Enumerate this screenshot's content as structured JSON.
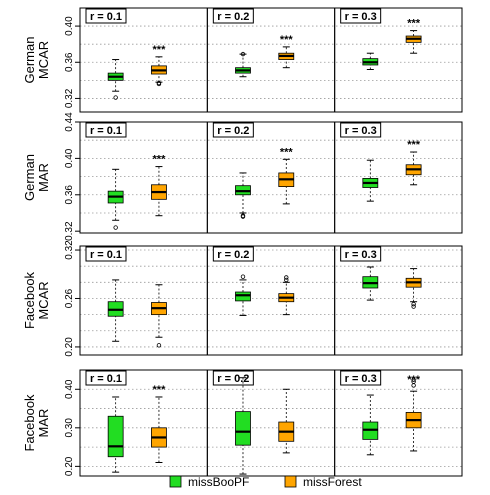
{
  "chart_data": {
    "type": "boxplot",
    "series": [
      {
        "name": "missBooPF",
        "color": "#22dd22"
      },
      {
        "name": "missForest",
        "color": "#ffa500"
      }
    ],
    "panel_labels": [
      "r = 0.1",
      "r = 0.2",
      "r = 0.3"
    ],
    "significance_marker": "***",
    "grid": "dotted horizontal",
    "legend_position": "bottom",
    "rows": [
      {
        "label_lines": [
          "German",
          "MCAR"
        ],
        "ylim": [
          0.305,
          0.42
        ],
        "yticks": [
          0.32,
          0.36,
          0.4
        ],
        "ytick_labels": [
          "0.32",
          "0.36",
          "0.40"
        ],
        "grid_values": [
          0.32,
          0.34,
          0.36,
          0.38,
          0.4
        ],
        "panels": [
          {
            "label": "r = 0.1",
            "sig": true,
            "boxes": [
              {
                "whisker_low": 0.328,
                "q1": 0.34,
                "median": 0.344,
                "q3": 0.348,
                "whisker_high": 0.363,
                "outliers": [
                  0.321
                ]
              },
              {
                "whisker_low": 0.338,
                "q1": 0.347,
                "median": 0.351,
                "q3": 0.356,
                "whisker_high": 0.366,
                "outliers": [
                  0.336,
                  0.337
                ]
              }
            ]
          },
          {
            "label": "r = 0.2",
            "sig": true,
            "boxes": [
              {
                "whisker_low": 0.344,
                "q1": 0.348,
                "median": 0.351,
                "q3": 0.354,
                "whisker_high": 0.369,
                "outliers": [
                  0.369
                ]
              },
              {
                "whisker_low": 0.354,
                "q1": 0.363,
                "median": 0.367,
                "q3": 0.37,
                "whisker_high": 0.377,
                "outliers": []
              }
            ]
          },
          {
            "label": "r = 0.3",
            "sig": true,
            "boxes": [
              {
                "whisker_low": 0.352,
                "q1": 0.357,
                "median": 0.36,
                "q3": 0.364,
                "whisker_high": 0.37,
                "outliers": []
              },
              {
                "whisker_low": 0.37,
                "q1": 0.382,
                "median": 0.386,
                "q3": 0.389,
                "whisker_high": 0.395,
                "outliers": []
              }
            ]
          }
        ]
      },
      {
        "label_lines": [
          "German",
          "MAR"
        ],
        "ylim": [
          0.318,
          0.44
        ],
        "yticks": [
          0.32,
          0.36,
          0.4,
          0.44
        ],
        "ytick_labels": [
          "0.32",
          "0.36",
          "0.40",
          "0.44"
        ],
        "grid_values": [
          0.32,
          0.34,
          0.36,
          0.38,
          0.4,
          0.42
        ],
        "panels": [
          {
            "label": "r = 0.1",
            "sig": true,
            "boxes": [
              {
                "whisker_low": 0.332,
                "q1": 0.351,
                "median": 0.358,
                "q3": 0.364,
                "whisker_high": 0.388,
                "outliers": [
                  0.324
                ]
              },
              {
                "whisker_low": 0.337,
                "q1": 0.355,
                "median": 0.363,
                "q3": 0.371,
                "whisker_high": 0.391,
                "outliers": []
              }
            ]
          },
          {
            "label": "r = 0.2",
            "sig": true,
            "boxes": [
              {
                "whisker_low": 0.34,
                "q1": 0.36,
                "median": 0.364,
                "q3": 0.37,
                "whisker_high": 0.384,
                "outliers": [
                  0.337,
                  0.336
                ]
              },
              {
                "whisker_low": 0.35,
                "q1": 0.369,
                "median": 0.377,
                "q3": 0.384,
                "whisker_high": 0.399,
                "outliers": []
              }
            ]
          },
          {
            "label": "r = 0.3",
            "sig": true,
            "boxes": [
              {
                "whisker_low": 0.353,
                "q1": 0.368,
                "median": 0.373,
                "q3": 0.378,
                "whisker_high": 0.398,
                "outliers": []
              },
              {
                "whisker_low": 0.371,
                "q1": 0.382,
                "median": 0.388,
                "q3": 0.393,
                "whisker_high": 0.407,
                "outliers": []
              }
            ]
          }
        ]
      },
      {
        "label_lines": [
          "Facebook",
          "MCAR"
        ],
        "ylim": [
          0.19,
          0.325
        ],
        "yticks": [
          0.2,
          0.26,
          0.32
        ],
        "ytick_labels": [
          "0.20",
          "0.26",
          "0.32"
        ],
        "grid_values": [
          0.2,
          0.22,
          0.24,
          0.26,
          0.28,
          0.3,
          0.32
        ],
        "panels": [
          {
            "label": "r = 0.1",
            "sig": false,
            "boxes": [
              {
                "whisker_low": 0.207,
                "q1": 0.238,
                "median": 0.246,
                "q3": 0.256,
                "whisker_high": 0.283,
                "outliers": []
              },
              {
                "whisker_low": 0.212,
                "q1": 0.24,
                "median": 0.248,
                "q3": 0.255,
                "whisker_high": 0.277,
                "outliers": [
                  0.202
                ]
              }
            ]
          },
          {
            "label": "r = 0.2",
            "sig": false,
            "boxes": [
              {
                "whisker_low": 0.239,
                "q1": 0.257,
                "median": 0.264,
                "q3": 0.268,
                "whisker_high": 0.283,
                "outliers": [
                  0.287
                ]
              },
              {
                "whisker_low": 0.24,
                "q1": 0.256,
                "median": 0.261,
                "q3": 0.266,
                "whisker_high": 0.28,
                "outliers": [
                  0.283,
                  0.286
                ]
              }
            ]
          },
          {
            "label": "r = 0.3",
            "sig": false,
            "boxes": [
              {
                "whisker_low": 0.258,
                "q1": 0.273,
                "median": 0.279,
                "q3": 0.287,
                "whisker_high": 0.299,
                "outliers": []
              },
              {
                "whisker_low": 0.256,
                "q1": 0.274,
                "median": 0.28,
                "q3": 0.285,
                "whisker_high": 0.297,
                "outliers": [
                  0.25,
                  0.253
                ]
              }
            ]
          }
        ]
      },
      {
        "label_lines": [
          "Facebook",
          "MAR"
        ],
        "ylim": [
          0.175,
          0.45
        ],
        "yticks": [
          0.2,
          0.3,
          0.4
        ],
        "ytick_labels": [
          "0.20",
          "0.30",
          "0.40"
        ],
        "grid_values": [
          0.2,
          0.25,
          0.3,
          0.35,
          0.4
        ],
        "panels": [
          {
            "label": "r = 0.1",
            "sig": true,
            "boxes": [
              {
                "whisker_low": 0.185,
                "q1": 0.225,
                "median": 0.252,
                "q3": 0.33,
                "whisker_high": 0.38,
                "outliers": []
              },
              {
                "whisker_low": 0.21,
                "q1": 0.25,
                "median": 0.275,
                "q3": 0.3,
                "whisker_high": 0.38,
                "outliers": []
              }
            ]
          },
          {
            "label": "r = 0.2",
            "sig": false,
            "boxes": [
              {
                "whisker_low": 0.18,
                "q1": 0.255,
                "median": 0.29,
                "q3": 0.342,
                "whisker_high": 0.43,
                "outliers": []
              },
              {
                "whisker_low": 0.235,
                "q1": 0.265,
                "median": 0.29,
                "q3": 0.315,
                "whisker_high": 0.4,
                "outliers": []
              }
            ]
          },
          {
            "label": "r = 0.3",
            "sig": true,
            "boxes": [
              {
                "whisker_low": 0.23,
                "q1": 0.27,
                "median": 0.295,
                "q3": 0.315,
                "whisker_high": 0.385,
                "outliers": []
              },
              {
                "whisker_low": 0.24,
                "q1": 0.3,
                "median": 0.32,
                "q3": 0.34,
                "whisker_high": 0.395,
                "outliers": [
                  0.41,
                  0.42,
                  0.425
                ]
              }
            ]
          }
        ]
      }
    ]
  }
}
